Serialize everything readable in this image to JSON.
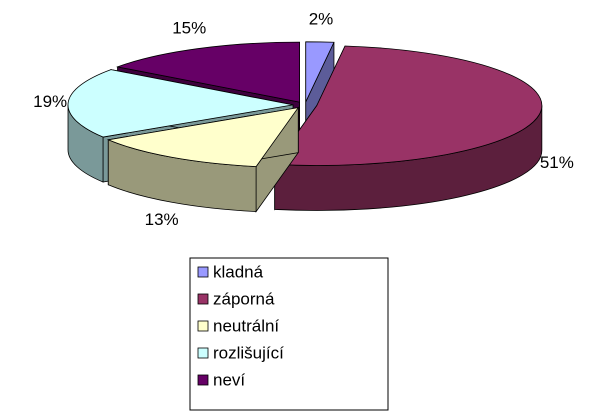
{
  "chart_data": {
    "type": "pie3d",
    "categories": [
      "kladná",
      "záporná",
      "neutrální",
      "rozlišující",
      "neví"
    ],
    "values": [
      2,
      51,
      13,
      19,
      15
    ],
    "value_labels": [
      "2%",
      "51%",
      "13%",
      "19%",
      "15%"
    ],
    "colors": [
      "#9999ff",
      "#993366",
      "#ffffcc",
      "#ccffff",
      "#660066"
    ],
    "legend": "bottom"
  }
}
